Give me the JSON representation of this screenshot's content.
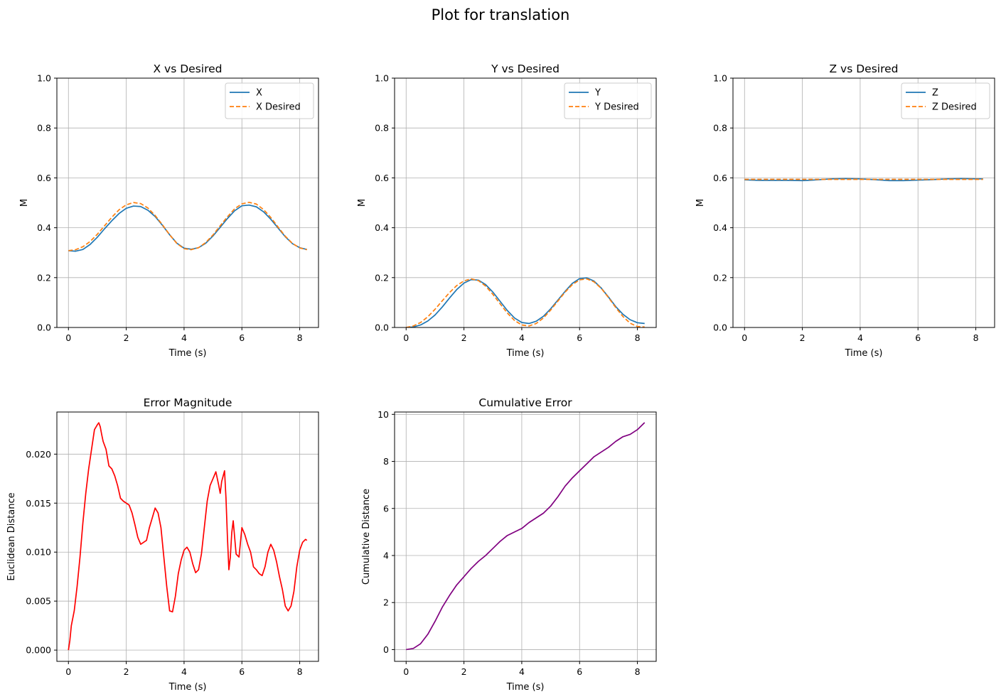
{
  "figure": {
    "suptitle": "Plot for translation"
  },
  "chart_data": [
    {
      "type": "line",
      "title": "X vs Desired",
      "xlabel": "Time (s)",
      "ylabel": "M",
      "xlim": [
        -0.4,
        8.65
      ],
      "ylim": [
        0.0,
        1.0
      ],
      "xticks": [
        0,
        2,
        4,
        6,
        8
      ],
      "xtick_labels": [
        "0",
        "2",
        "4",
        "6",
        "8"
      ],
      "yticks": [
        0.0,
        0.2,
        0.4,
        0.6,
        0.8,
        1.0
      ],
      "ytick_labels": [
        "0.0",
        "0.2",
        "0.4",
        "0.6",
        "0.8",
        "1.0"
      ],
      "grid": true,
      "legend": "top-right",
      "series": [
        {
          "name": "X",
          "color": "#1f77b4",
          "style": "solid",
          "x": [
            0,
            0.25,
            0.5,
            0.75,
            1.0,
            1.25,
            1.5,
            1.75,
            2.0,
            2.25,
            2.5,
            2.75,
            3.0,
            3.25,
            3.5,
            3.75,
            4.0,
            4.25,
            4.5,
            4.75,
            5.0,
            5.25,
            5.5,
            5.75,
            6.0,
            6.25,
            6.5,
            6.75,
            7.0,
            7.25,
            7.5,
            7.75,
            8.0,
            8.25
          ],
          "y": [
            0.308,
            0.306,
            0.313,
            0.333,
            0.362,
            0.396,
            0.428,
            0.457,
            0.478,
            0.487,
            0.485,
            0.47,
            0.445,
            0.41,
            0.372,
            0.338,
            0.318,
            0.314,
            0.32,
            0.338,
            0.367,
            0.402,
            0.437,
            0.468,
            0.488,
            0.491,
            0.484,
            0.464,
            0.434,
            0.399,
            0.364,
            0.336,
            0.32,
            0.313
          ]
        },
        {
          "name": "X Desired",
          "color": "#ff7f0e",
          "style": "dashed",
          "x": [
            0,
            0.25,
            0.5,
            0.75,
            1.0,
            1.25,
            1.5,
            1.75,
            2.0,
            2.25,
            2.5,
            2.75,
            3.0,
            3.25,
            3.5,
            3.75,
            4.0,
            4.25,
            4.5,
            4.75,
            5.0,
            5.25,
            5.5,
            5.75,
            6.0,
            6.25,
            6.5,
            6.75,
            7.0,
            7.25,
            7.5,
            7.75,
            8.0,
            8.25
          ],
          "y": [
            0.308,
            0.312,
            0.324,
            0.345,
            0.374,
            0.408,
            0.442,
            0.472,
            0.492,
            0.501,
            0.497,
            0.479,
            0.449,
            0.412,
            0.372,
            0.337,
            0.316,
            0.312,
            0.32,
            0.341,
            0.371,
            0.408,
            0.444,
            0.476,
            0.496,
            0.502,
            0.495,
            0.473,
            0.441,
            0.403,
            0.366,
            0.337,
            0.319,
            0.312
          ]
        }
      ]
    },
    {
      "type": "line",
      "title": "Y vs Desired",
      "xlabel": "Time (s)",
      "ylabel": "M",
      "xlim": [
        -0.4,
        8.65
      ],
      "ylim": [
        0.0,
        1.0
      ],
      "xticks": [
        0,
        2,
        4,
        6,
        8
      ],
      "xtick_labels": [
        "0",
        "2",
        "4",
        "6",
        "8"
      ],
      "yticks": [
        0.0,
        0.2,
        0.4,
        0.6,
        0.8,
        1.0
      ],
      "ytick_labels": [
        "0.0",
        "0.2",
        "0.4",
        "0.6",
        "0.8",
        "1.0"
      ],
      "grid": true,
      "legend": "top-right",
      "series": [
        {
          "name": "Y",
          "color": "#1f77b4",
          "style": "solid",
          "x": [
            0,
            0.25,
            0.5,
            0.75,
            1.0,
            1.25,
            1.5,
            1.75,
            2.0,
            2.25,
            2.5,
            2.75,
            3.0,
            3.25,
            3.5,
            3.75,
            4.0,
            4.25,
            4.5,
            4.75,
            5.0,
            5.25,
            5.5,
            5.75,
            6.0,
            6.25,
            6.5,
            6.75,
            7.0,
            7.25,
            7.5,
            7.75,
            8.0,
            8.25
          ],
          "y": [
            0.0,
            0.002,
            0.01,
            0.026,
            0.05,
            0.082,
            0.118,
            0.152,
            0.178,
            0.192,
            0.19,
            0.172,
            0.142,
            0.105,
            0.068,
            0.038,
            0.02,
            0.016,
            0.025,
            0.045,
            0.075,
            0.11,
            0.145,
            0.177,
            0.196,
            0.199,
            0.186,
            0.158,
            0.122,
            0.084,
            0.053,
            0.031,
            0.019,
            0.016
          ]
        },
        {
          "name": "Y Desired",
          "color": "#ff7f0e",
          "style": "dashed",
          "x": [
            0,
            0.25,
            0.5,
            0.75,
            1.0,
            1.25,
            1.5,
            1.75,
            2.0,
            2.25,
            2.5,
            2.75,
            3.0,
            3.25,
            3.5,
            3.75,
            4.0,
            4.25,
            4.5,
            4.75,
            5.0,
            5.25,
            5.5,
            5.75,
            6.0,
            6.25,
            6.5,
            6.75,
            7.0,
            7.25,
            7.5,
            7.75,
            8.0,
            8.25
          ],
          "y": [
            0.0,
            0.006,
            0.02,
            0.043,
            0.073,
            0.107,
            0.14,
            0.168,
            0.187,
            0.195,
            0.188,
            0.166,
            0.133,
            0.095,
            0.058,
            0.028,
            0.01,
            0.006,
            0.016,
            0.038,
            0.07,
            0.106,
            0.142,
            0.172,
            0.191,
            0.195,
            0.183,
            0.157,
            0.12,
            0.08,
            0.044,
            0.017,
            0.004,
            0.002
          ]
        }
      ]
    },
    {
      "type": "line",
      "title": "Z vs Desired",
      "xlabel": "Time (s)",
      "ylabel": "M",
      "xlim": [
        -0.4,
        8.65
      ],
      "ylim": [
        0.0,
        1.0
      ],
      "xticks": [
        0,
        2,
        4,
        6,
        8
      ],
      "xtick_labels": [
        "0",
        "2",
        "4",
        "6",
        "8"
      ],
      "yticks": [
        0.0,
        0.2,
        0.4,
        0.6,
        0.8,
        1.0
      ],
      "ytick_labels": [
        "0.0",
        "0.2",
        "0.4",
        "0.6",
        "0.8",
        "1.0"
      ],
      "grid": true,
      "legend": "top-right",
      "series": [
        {
          "name": "Z",
          "color": "#1f77b4",
          "style": "solid",
          "x": [
            0,
            0.5,
            1.0,
            1.5,
            2.0,
            2.5,
            3.0,
            3.5,
            4.0,
            4.5,
            5.0,
            5.5,
            6.0,
            6.5,
            7.0,
            7.5,
            8.0,
            8.25
          ],
          "y": [
            0.592,
            0.59,
            0.59,
            0.59,
            0.589,
            0.592,
            0.596,
            0.597,
            0.596,
            0.593,
            0.589,
            0.589,
            0.591,
            0.593,
            0.596,
            0.597,
            0.596,
            0.596
          ]
        },
        {
          "name": "Z Desired",
          "color": "#ff7f0e",
          "style": "dashed",
          "x": [
            0,
            1.0,
            2.0,
            3.0,
            4.0,
            5.0,
            6.0,
            7.0,
            8.0,
            8.25
          ],
          "y": [
            0.594,
            0.594,
            0.594,
            0.594,
            0.594,
            0.594,
            0.594,
            0.594,
            0.594,
            0.594
          ]
        }
      ]
    },
    {
      "type": "line",
      "title": "Error Magnitude",
      "xlabel": "Time (s)",
      "ylabel": "Euclidean Distance",
      "xlim": [
        -0.4,
        8.65
      ],
      "ylim": [
        -0.00115,
        0.0243
      ],
      "xticks": [
        0,
        2,
        4,
        6,
        8
      ],
      "xtick_labels": [
        "0",
        "2",
        "4",
        "6",
        "8"
      ],
      "yticks": [
        0.0,
        0.005,
        0.01,
        0.015,
        0.02
      ],
      "ytick_labels": [
        "0.000",
        "0.005",
        "0.010",
        "0.015",
        "0.020"
      ],
      "grid": true,
      "series": [
        {
          "color": "#ff0000",
          "style": "solid",
          "x": [
            0,
            0.05,
            0.1,
            0.2,
            0.3,
            0.4,
            0.5,
            0.6,
            0.7,
            0.8,
            0.9,
            1.0,
            1.05,
            1.1,
            1.15,
            1.2,
            1.3,
            1.4,
            1.5,
            1.6,
            1.7,
            1.8,
            1.9,
            2.0,
            2.1,
            2.2,
            2.3,
            2.4,
            2.5,
            2.6,
            2.7,
            2.8,
            2.9,
            3.0,
            3.1,
            3.2,
            3.3,
            3.4,
            3.5,
            3.6,
            3.7,
            3.8,
            3.9,
            4.0,
            4.1,
            4.2,
            4.3,
            4.4,
            4.5,
            4.6,
            4.7,
            4.8,
            4.9,
            5.0,
            5.1,
            5.2,
            5.25,
            5.3,
            5.4,
            5.45,
            5.5,
            5.55,
            5.6,
            5.65,
            5.7,
            5.8,
            5.9,
            6.0,
            6.1,
            6.2,
            6.3,
            6.4,
            6.5,
            6.6,
            6.7,
            6.8,
            6.9,
            7.0,
            7.1,
            7.2,
            7.3,
            7.4,
            7.5,
            7.6,
            7.7,
            7.8,
            7.9,
            8.0,
            8.1,
            8.2,
            8.25
          ],
          "y": [
            0.0,
            0.001,
            0.0025,
            0.004,
            0.0065,
            0.0095,
            0.013,
            0.016,
            0.0185,
            0.0205,
            0.0225,
            0.023,
            0.0232,
            0.0228,
            0.022,
            0.0213,
            0.0205,
            0.0188,
            0.0185,
            0.0178,
            0.0168,
            0.0155,
            0.0152,
            0.015,
            0.0148,
            0.014,
            0.0128,
            0.0115,
            0.0108,
            0.011,
            0.0112,
            0.0125,
            0.0135,
            0.0145,
            0.014,
            0.0125,
            0.0095,
            0.0065,
            0.004,
            0.0039,
            0.0055,
            0.0078,
            0.0092,
            0.0102,
            0.0105,
            0.01,
            0.0088,
            0.0079,
            0.0082,
            0.0098,
            0.0125,
            0.0152,
            0.0168,
            0.0175,
            0.0182,
            0.0168,
            0.016,
            0.0172,
            0.0183,
            0.0155,
            0.0115,
            0.0082,
            0.0095,
            0.012,
            0.0132,
            0.0098,
            0.0095,
            0.0125,
            0.0118,
            0.0108,
            0.01,
            0.0085,
            0.0082,
            0.0078,
            0.0076,
            0.0085,
            0.01,
            0.0108,
            0.0102,
            0.009,
            0.0075,
            0.0062,
            0.0045,
            0.004,
            0.0045,
            0.006,
            0.0085,
            0.0102,
            0.011,
            0.0113,
            0.0112
          ]
        }
      ]
    },
    {
      "type": "line",
      "title": "Cumulative Error",
      "xlabel": "Time (s)",
      "ylabel": "Cumulative Distance",
      "xlim": [
        -0.4,
        8.65
      ],
      "ylim": [
        -0.5,
        10.1
      ],
      "xticks": [
        0,
        2,
        4,
        6,
        8
      ],
      "xtick_labels": [
        "0",
        "2",
        "4",
        "6",
        "8"
      ],
      "yticks": [
        0,
        2,
        4,
        6,
        8,
        10
      ],
      "ytick_labels": [
        "0",
        "2",
        "4",
        "6",
        "8",
        "10"
      ],
      "grid": true,
      "series": [
        {
          "color": "#800080",
          "style": "solid",
          "x": [
            0,
            0.25,
            0.5,
            0.75,
            1.0,
            1.25,
            1.5,
            1.75,
            2.0,
            2.25,
            2.5,
            2.75,
            3.0,
            3.25,
            3.5,
            3.75,
            4.0,
            4.25,
            4.5,
            4.75,
            5.0,
            5.25,
            5.5,
            5.75,
            6.0,
            6.25,
            6.5,
            6.75,
            7.0,
            7.25,
            7.5,
            7.75,
            8.0,
            8.25
          ],
          "y": [
            0.0,
            0.05,
            0.25,
            0.65,
            1.2,
            1.8,
            2.3,
            2.75,
            3.1,
            3.45,
            3.75,
            4.0,
            4.3,
            4.6,
            4.85,
            5.0,
            5.15,
            5.4,
            5.6,
            5.8,
            6.1,
            6.5,
            6.95,
            7.3,
            7.6,
            7.9,
            8.2,
            8.4,
            8.6,
            8.85,
            9.05,
            9.15,
            9.35,
            9.65
          ]
        }
      ]
    }
  ]
}
